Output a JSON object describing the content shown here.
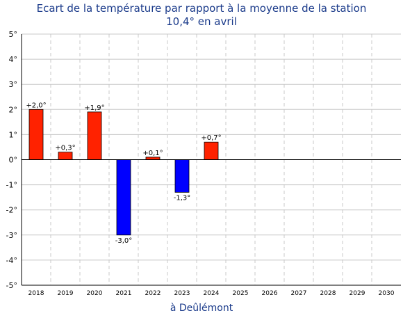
{
  "chart_data": {
    "type": "bar",
    "title": "Ecart de la température par rapport à la moyenne de la station",
    "subtitle": "10,4° en avril",
    "xlabel": "à Deûlémont",
    "ylabel": "",
    "categories": [
      "2018",
      "2019",
      "2020",
      "2021",
      "2022",
      "2023",
      "2024",
      "2025",
      "2026",
      "2027",
      "2028",
      "2029",
      "2030"
    ],
    "values": [
      2.0,
      0.3,
      1.9,
      -3.0,
      0.1,
      -1.3,
      0.7,
      null,
      null,
      null,
      null,
      null,
      null
    ],
    "data_labels": [
      "+2,0°",
      "+0,3°",
      "+1,9°",
      "-3,0°",
      "+0,1°",
      "-1,3°",
      "+0,7°",
      "",
      "",
      "",
      "",
      "",
      ""
    ],
    "ylim": [
      -5,
      5
    ],
    "yticks": [
      5,
      4,
      3,
      2,
      1,
      0,
      -1,
      -2,
      -3,
      -4,
      -5
    ],
    "ytick_labels": [
      "5°",
      "4°",
      "3°",
      "2°",
      "1°",
      "0°",
      "-1°",
      "-2°",
      "-3°",
      "-4°",
      "-5°"
    ],
    "grid": true,
    "colors": {
      "positive": "#ff2200",
      "negative": "#0000ff",
      "title": "#1a3a8a",
      "grid": "#c8c8c8"
    }
  }
}
